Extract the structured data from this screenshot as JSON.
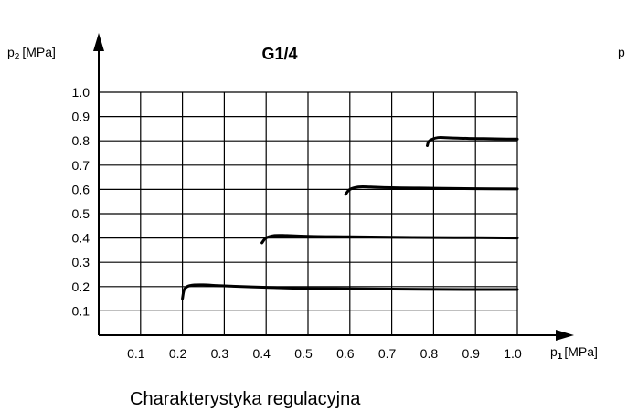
{
  "chart_data": {
    "type": "line",
    "title": "G1/4",
    "ylabel": {
      "symbol": "p",
      "sub": "2",
      "unit": "[MPa]"
    },
    "xlabel": {
      "symbol": "p",
      "sub": "1",
      "unit": "[MPa]"
    },
    "caption": "Charakterystyka regulacyjna",
    "stray_label": "p",
    "xlim": [
      0,
      1.0
    ],
    "ylim": [
      0,
      1.0
    ],
    "x_ticks": [
      "0.1",
      "0.2",
      "0.3",
      "0.4",
      "0.5",
      "0.6",
      "0.7",
      "0.8",
      "0.9",
      "1.0"
    ],
    "y_ticks": [
      "0.1",
      "0.2",
      "0.3",
      "0.4",
      "0.5",
      "0.6",
      "0.7",
      "0.8",
      "0.9",
      "1.0"
    ],
    "grid": true,
    "series": [
      {
        "x": [
          0.2,
          0.205,
          0.22,
          0.25,
          0.3,
          0.4,
          0.5,
          0.7,
          0.9,
          1.0
        ],
        "y": [
          0.15,
          0.19,
          0.205,
          0.207,
          0.203,
          0.197,
          0.193,
          0.19,
          0.188,
          0.188
        ]
      },
      {
        "x": [
          0.39,
          0.4,
          0.42,
          0.45,
          0.5,
          0.6,
          0.7,
          0.8,
          0.9,
          1.0
        ],
        "y": [
          0.38,
          0.4,
          0.41,
          0.41,
          0.407,
          0.405,
          0.403,
          0.402,
          0.401,
          0.4
        ]
      },
      {
        "x": [
          0.59,
          0.6,
          0.62,
          0.65,
          0.7,
          0.8,
          0.9,
          1.0
        ],
        "y": [
          0.58,
          0.6,
          0.61,
          0.61,
          0.607,
          0.605,
          0.603,
          0.602
        ]
      },
      {
        "x": [
          0.785,
          0.79,
          0.81,
          0.84,
          0.88,
          0.92,
          0.96,
          1.0
        ],
        "y": [
          0.78,
          0.8,
          0.813,
          0.812,
          0.81,
          0.809,
          0.808,
          0.807
        ]
      }
    ]
  }
}
